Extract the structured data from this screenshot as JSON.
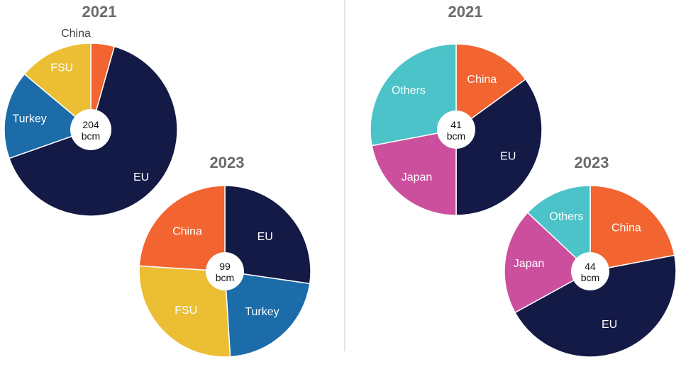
{
  "colors": {
    "EU": "#141a46",
    "Turkey": "#1b6ca8",
    "FSU": "#ebbe34",
    "China": "#f26430",
    "Japan": "#cc4f9e",
    "Others": "#4cc3c8"
  },
  "chart_data": [
    {
      "type": "pie",
      "title": "2021",
      "center_value": "204",
      "center_unit": "bcm",
      "labels": [
        "China",
        "EU",
        "Turkey",
        "FSU"
      ],
      "values": [
        4.4,
        65.2,
        16.5,
        13.9
      ]
    },
    {
      "type": "pie",
      "title": "2023",
      "center_value": "99",
      "center_unit": "bcm",
      "labels": [
        "EU",
        "Turkey",
        "FSU",
        "China"
      ],
      "values": [
        27.3,
        21.7,
        27.0,
        24.0
      ]
    },
    {
      "type": "pie",
      "title": "2021",
      "center_value": "41",
      "center_unit": "bcm",
      "labels": [
        "China",
        "EU",
        "Japan",
        "Others"
      ],
      "values": [
        15.0,
        35.0,
        22.0,
        28.0
      ]
    },
    {
      "type": "pie",
      "title": "2023",
      "center_value": "44",
      "center_unit": "bcm",
      "labels": [
        "China",
        "EU",
        "Japan",
        "Others"
      ],
      "values": [
        22.0,
        45.0,
        20.0,
        13.0
      ]
    }
  ]
}
